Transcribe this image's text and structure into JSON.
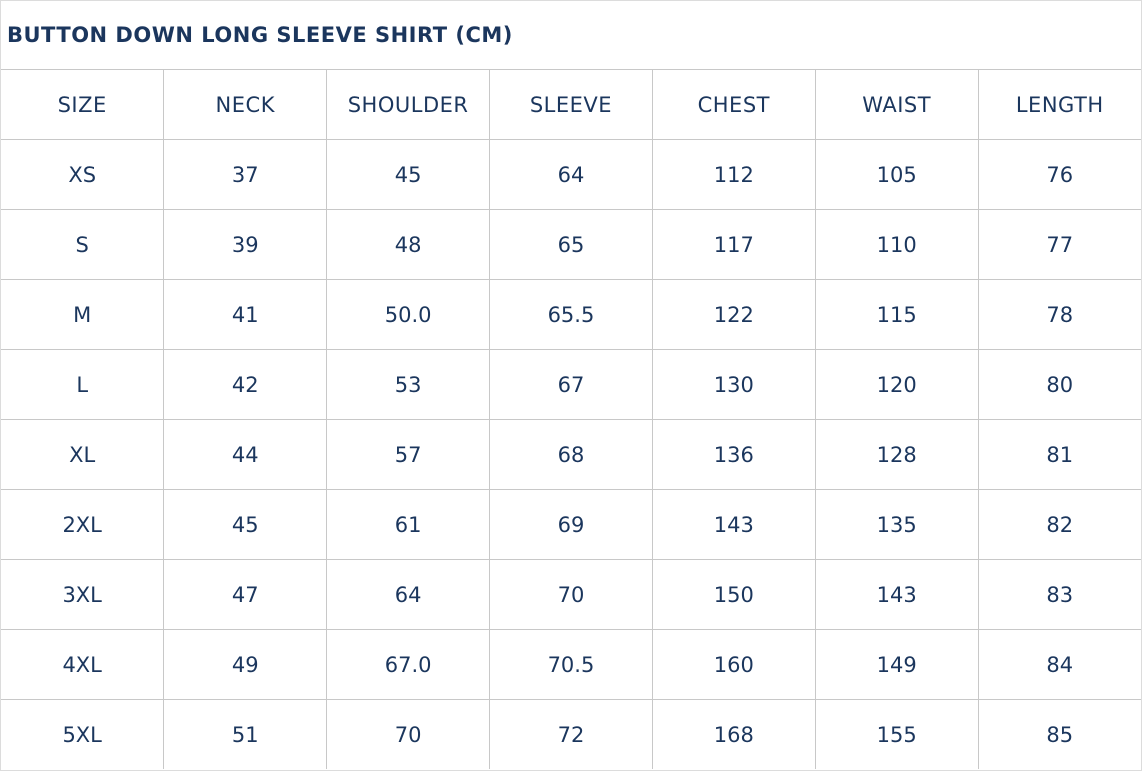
{
  "title": "BUTTON DOWN LONG SLEEVE SHIRT (CM)",
  "colors": {
    "text": "#1b365d",
    "border": "#c8c8c8"
  },
  "columns": [
    "SIZE",
    "NECK",
    "SHOULDER",
    "SLEEVE",
    "CHEST",
    "WAIST",
    "LENGTH"
  ],
  "rows": [
    [
      "XS",
      "37",
      "45",
      "64",
      "112",
      "105",
      "76"
    ],
    [
      "S",
      "39",
      "48",
      "65",
      "117",
      "110",
      "77"
    ],
    [
      "M",
      "41",
      "50.0",
      "65.5",
      "122",
      "115",
      "78"
    ],
    [
      "L",
      "42",
      "53",
      "67",
      "130",
      "120",
      "80"
    ],
    [
      "XL",
      "44",
      "57",
      "68",
      "136",
      "128",
      "81"
    ],
    [
      "2XL",
      "45",
      "61",
      "69",
      "143",
      "135",
      "82"
    ],
    [
      "3XL",
      "47",
      "64",
      "70",
      "150",
      "143",
      "83"
    ],
    [
      "4XL",
      "49",
      "67.0",
      "70.5",
      "160",
      "149",
      "84"
    ],
    [
      "5XL",
      "51",
      "70",
      "72",
      "168",
      "155",
      "85"
    ]
  ]
}
